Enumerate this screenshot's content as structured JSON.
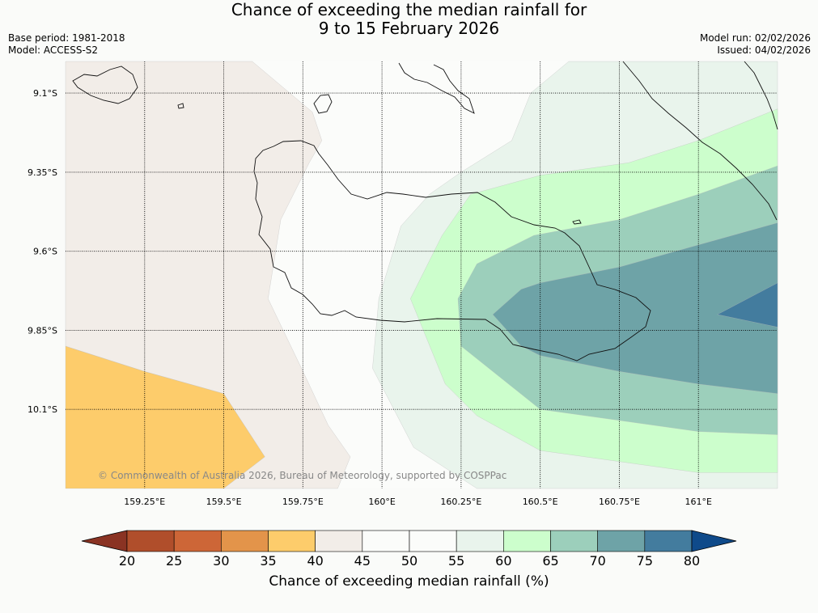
{
  "header": {
    "title_line1": "Chance of exceeding the median rainfall for",
    "title_line2": "9 to 15 February 2026",
    "base_period": "Base period: 1981-2018",
    "model": "Model: ACCESS-S2",
    "model_run": "Model run: 02/02/2026",
    "issued": "Issued: 04/02/2026"
  },
  "copyright": "© Commonwealth of Australia 2026, Bureau of Meteorology, supported by COSPPac",
  "chart_data": {
    "type": "contour-map",
    "title": "Chance of exceeding the median rainfall for 9 to 15 February 2026",
    "x_axis": {
      "ticks": [
        159.25,
        159.5,
        159.75,
        160.0,
        160.25,
        160.5,
        160.75,
        161.0
      ],
      "tick_labels": [
        "159.25°E",
        "159.5°E",
        "159.75°E",
        "160°E",
        "160.25°E",
        "160.5°E",
        "160.75°E",
        "161°E"
      ],
      "range": [
        159.0,
        161.25
      ]
    },
    "y_axis": {
      "ticks": [
        -9.1,
        -9.35,
        -9.6,
        -9.85,
        -10.1
      ],
      "tick_labels": [
        "9.1°S",
        "9.35°S",
        "9.6°S",
        "9.85°S",
        "10.1°S"
      ],
      "range": [
        -10.35,
        -9.0
      ]
    },
    "grid": true,
    "regions": [
      {
        "level": "35-40",
        "color": "#fdcc6b",
        "points": [
          [
            159.0,
            -9.9
          ],
          [
            159.0,
            -10.35
          ],
          [
            159.5,
            -10.35
          ],
          [
            159.63,
            -10.25
          ],
          [
            159.5,
            -10.05
          ],
          [
            159.25,
            -9.98
          ]
        ]
      },
      {
        "level": "40-45",
        "color": "#f2ede8",
        "points": [
          [
            159.0,
            -9.0
          ],
          [
            159.59,
            -9.0
          ],
          [
            159.78,
            -9.16
          ],
          [
            159.81,
            -9.25
          ],
          [
            159.77,
            -9.32
          ],
          [
            159.68,
            -9.5
          ],
          [
            159.64,
            -9.75
          ],
          [
            159.76,
            -10.0
          ],
          [
            159.83,
            -10.15
          ],
          [
            159.9,
            -10.25
          ],
          [
            159.86,
            -10.35
          ],
          [
            159.5,
            -10.35
          ],
          [
            159.63,
            -10.25
          ],
          [
            159.5,
            -10.05
          ],
          [
            159.25,
            -9.98
          ],
          [
            159.0,
            -9.9
          ]
        ]
      },
      {
        "level": "55-60",
        "color": "#e9f4ec",
        "points": [
          [
            160.47,
            -9.1
          ],
          [
            160.59,
            -9.0
          ],
          [
            161.25,
            -9.0
          ],
          [
            161.25,
            -10.45
          ],
          [
            160.5,
            -10.45
          ],
          [
            160.3,
            -10.4
          ],
          [
            160.1,
            -10.22
          ],
          [
            159.97,
            -9.97
          ],
          [
            159.99,
            -9.75
          ],
          [
            160.06,
            -9.52
          ],
          [
            160.15,
            -9.42
          ],
          [
            160.25,
            -9.35
          ],
          [
            160.41,
            -9.25
          ]
        ]
      },
      {
        "level": "60-65",
        "color": "#ccfecc",
        "points": [
          [
            161.25,
            -9.15
          ],
          [
            161.25,
            -10.3
          ],
          [
            161.0,
            -10.3
          ],
          [
            160.5,
            -10.23
          ],
          [
            160.3,
            -10.12
          ],
          [
            160.2,
            -10.02
          ],
          [
            160.09,
            -9.75
          ],
          [
            160.19,
            -9.55
          ],
          [
            160.28,
            -9.42
          ],
          [
            160.5,
            -9.36
          ],
          [
            160.78,
            -9.32
          ],
          [
            161.0,
            -9.25
          ]
        ]
      },
      {
        "level": "65-70",
        "color": "#9ccfbb",
        "points": [
          [
            161.25,
            -9.33
          ],
          [
            161.25,
            -10.18
          ],
          [
            161.0,
            -10.17
          ],
          [
            160.5,
            -10.1
          ],
          [
            160.25,
            -9.9
          ],
          [
            160.24,
            -9.75
          ],
          [
            160.3,
            -9.64
          ],
          [
            160.48,
            -9.55
          ],
          [
            160.75,
            -9.5
          ],
          [
            161.0,
            -9.42
          ]
        ]
      },
      {
        "level": "70-75",
        "color": "#6ea3a7",
        "points": [
          [
            161.25,
            -9.51
          ],
          [
            161.25,
            -10.05
          ],
          [
            161.0,
            -10.02
          ],
          [
            160.75,
            -9.98
          ],
          [
            160.5,
            -9.93
          ],
          [
            160.44,
            -9.9
          ],
          [
            160.35,
            -9.8
          ],
          [
            160.44,
            -9.72
          ],
          [
            160.5,
            -9.7
          ],
          [
            160.75,
            -9.65
          ],
          [
            161.0,
            -9.58
          ]
        ]
      },
      {
        "level": "75-80",
        "color": "#437c9e",
        "points": [
          [
            161.25,
            -9.7
          ],
          [
            161.06,
            -9.8
          ],
          [
            161.25,
            -9.84
          ]
        ]
      }
    ],
    "colorbar": {
      "label": "Chance of exceeding median rainfall (%)",
      "ticks": [
        20,
        25,
        30,
        35,
        40,
        45,
        50,
        55,
        60,
        65,
        70,
        75,
        80
      ],
      "colors": [
        "#b04e2b",
        "#cd6637",
        "#e3944a",
        "#fdcc6b",
        "#f2ede8",
        "#fbfcfa",
        "#fbfcfa",
        "#e9f4ec",
        "#ccfecc",
        "#9ccfbb",
        "#6ea3a7",
        "#437c9e"
      ],
      "under_color": "#8a3323",
      "over_color": "#0f4a8a"
    }
  }
}
